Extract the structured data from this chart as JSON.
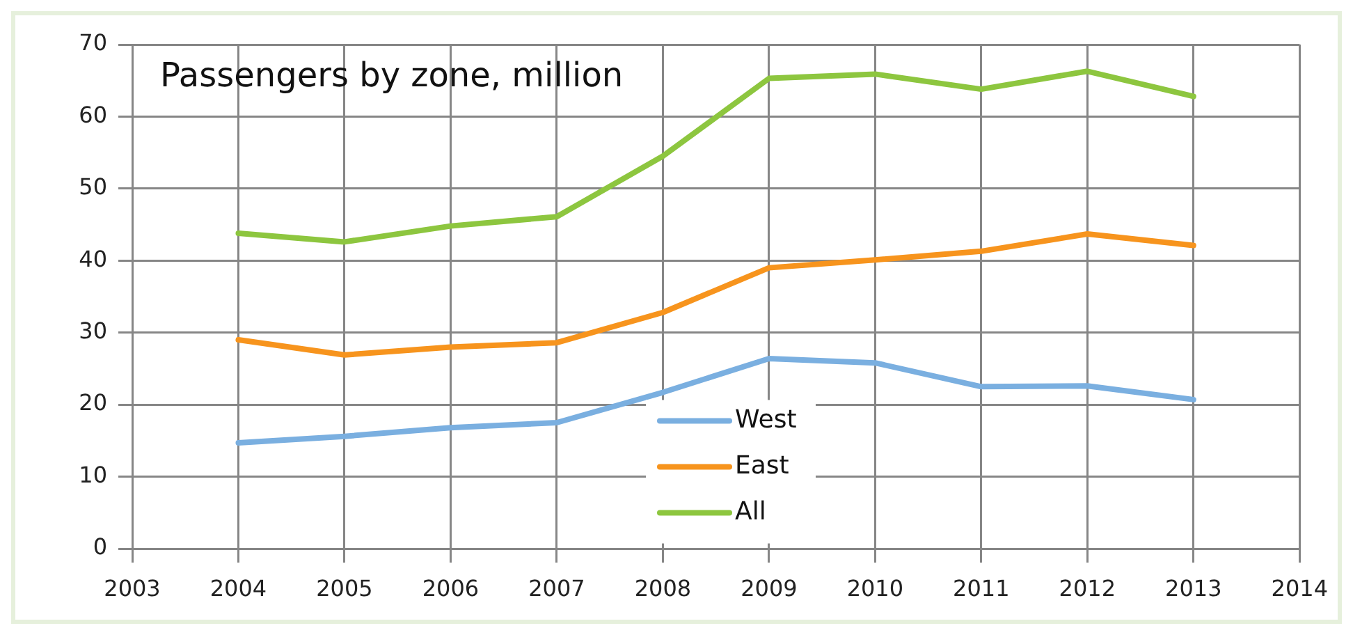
{
  "chart_data": {
    "type": "line",
    "title": "Passengers by zone, million",
    "x": [
      2004,
      2005,
      2006,
      2007,
      2008,
      2009,
      2010,
      2011,
      2012,
      2013
    ],
    "series": [
      {
        "name": "West",
        "color": "#7aafe0",
        "values": [
          14.7,
          15.6,
          16.8,
          17.5,
          21.7,
          26.4,
          25.8,
          22.5,
          22.6,
          20.7
        ]
      },
      {
        "name": "East",
        "color": "#f7941d",
        "values": [
          29,
          26.9,
          28,
          28.6,
          32.8,
          39,
          40.1,
          41.3,
          43.7,
          42.1
        ]
      },
      {
        "name": "All",
        "color": "#8dc63f",
        "values": [
          43.8,
          42.6,
          44.8,
          46.1,
          54.5,
          65.3,
          65.9,
          63.8,
          66.3,
          62.8
        ]
      }
    ],
    "xlim": [
      2003,
      2014
    ],
    "xticks": [
      2003,
      2004,
      2005,
      2006,
      2007,
      2008,
      2009,
      2010,
      2011,
      2012,
      2013,
      2014
    ],
    "ylim": [
      0,
      70
    ],
    "yticks": [
      0,
      10,
      20,
      30,
      40,
      50,
      60,
      70
    ],
    "grid": true,
    "legend": "bottom",
    "marker": "none",
    "line_style": "solid"
  }
}
